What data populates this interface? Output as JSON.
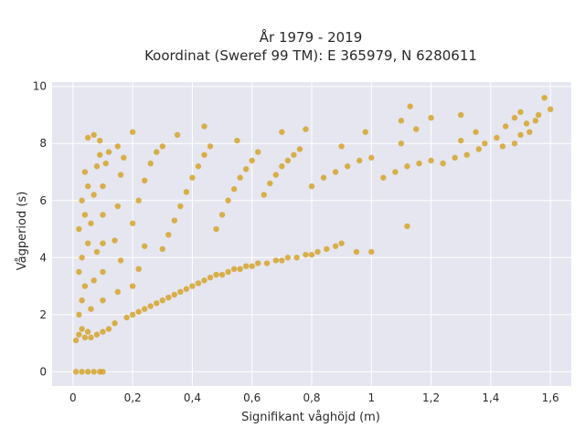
{
  "chart_data": {
    "type": "scatter",
    "title_lines": [
      "År 1979 - 2019",
      "Koordinat (Sweref 99 TM): E 365979, N 6280611"
    ],
    "xlabel": "Signifikant våghöjd (m)",
    "ylabel": "Vågperiod (s)",
    "xlim": [
      -0.07,
      1.67
    ],
    "ylim": [
      -0.5,
      10.15
    ],
    "x_ticks": [
      0,
      0.2,
      0.4,
      0.6,
      0.8,
      1,
      1.2,
      1.4,
      1.6
    ],
    "x_tick_labels": [
      "0",
      "0,2",
      "0,4",
      "0,6",
      "0,8",
      "1",
      "1,2",
      "1,4",
      "1,6"
    ],
    "y_ticks": [
      0,
      2,
      4,
      6,
      8,
      10
    ],
    "y_tick_labels": [
      "0",
      "2",
      "4",
      "6",
      "8",
      "10"
    ],
    "grid": true,
    "colors": {
      "marker": "#d4a020",
      "plot_background": "#e5e6ef",
      "grid": "#ffffff"
    },
    "series": [
      {
        "points": [
          [
            0.01,
            0
          ],
          [
            0.03,
            0
          ],
          [
            0.05,
            0
          ],
          [
            0.07,
            0
          ],
          [
            0.09,
            0
          ],
          [
            0.1,
            0
          ],
          [
            0.01,
            1.1
          ],
          [
            0.02,
            1.3
          ],
          [
            0.03,
            1.5
          ],
          [
            0.04,
            1.2
          ],
          [
            0.05,
            1.4
          ],
          [
            0.06,
            1.2
          ],
          [
            0.08,
            1.3
          ],
          [
            0.1,
            1.4
          ],
          [
            0.12,
            1.5
          ],
          [
            0.02,
            2.0
          ],
          [
            0.03,
            2.5
          ],
          [
            0.04,
            3.0
          ],
          [
            0.02,
            3.5
          ],
          [
            0.03,
            4.0
          ],
          [
            0.05,
            4.5
          ],
          [
            0.02,
            5.0
          ],
          [
            0.04,
            5.5
          ],
          [
            0.03,
            6.0
          ],
          [
            0.05,
            6.5
          ],
          [
            0.04,
            7.0
          ],
          [
            0.06,
            2.2
          ],
          [
            0.07,
            3.2
          ],
          [
            0.08,
            4.2
          ],
          [
            0.06,
            5.2
          ],
          [
            0.07,
            6.2
          ],
          [
            0.08,
            7.2
          ],
          [
            0.09,
            7.6
          ],
          [
            0.05,
            8.2
          ],
          [
            0.07,
            8.3
          ],
          [
            0.09,
            8.1
          ],
          [
            0.1,
            2.5
          ],
          [
            0.1,
            3.5
          ],
          [
            0.1,
            4.5
          ],
          [
            0.1,
            5.5
          ],
          [
            0.1,
            6.5
          ],
          [
            0.11,
            7.3
          ],
          [
            0.12,
            7.7
          ],
          [
            0.14,
            1.7
          ],
          [
            0.15,
            2.8
          ],
          [
            0.16,
            3.9
          ],
          [
            0.14,
            4.6
          ],
          [
            0.15,
            5.8
          ],
          [
            0.16,
            6.9
          ],
          [
            0.17,
            7.5
          ],
          [
            0.15,
            7.9
          ],
          [
            0.2,
            8.4
          ],
          [
            0.18,
            1.9
          ],
          [
            0.2,
            2.0
          ],
          [
            0.22,
            2.1
          ],
          [
            0.24,
            2.2
          ],
          [
            0.26,
            2.3
          ],
          [
            0.28,
            2.4
          ],
          [
            0.3,
            2.5
          ],
          [
            0.2,
            3.0
          ],
          [
            0.22,
            3.6
          ],
          [
            0.24,
            4.4
          ],
          [
            0.2,
            5.2
          ],
          [
            0.22,
            6.0
          ],
          [
            0.24,
            6.7
          ],
          [
            0.26,
            7.3
          ],
          [
            0.28,
            7.7
          ],
          [
            0.3,
            7.9
          ],
          [
            0.32,
            2.6
          ],
          [
            0.34,
            2.7
          ],
          [
            0.36,
            2.8
          ],
          [
            0.38,
            2.9
          ],
          [
            0.4,
            3.0
          ],
          [
            0.42,
            3.1
          ],
          [
            0.44,
            3.2
          ],
          [
            0.3,
            4.3
          ],
          [
            0.32,
            4.8
          ],
          [
            0.34,
            5.3
          ],
          [
            0.36,
            5.8
          ],
          [
            0.38,
            6.3
          ],
          [
            0.4,
            6.8
          ],
          [
            0.42,
            7.2
          ],
          [
            0.44,
            7.6
          ],
          [
            0.46,
            7.9
          ],
          [
            0.35,
            8.3
          ],
          [
            0.44,
            8.6
          ],
          [
            0.46,
            3.3
          ],
          [
            0.48,
            3.4
          ],
          [
            0.5,
            3.4
          ],
          [
            0.52,
            3.5
          ],
          [
            0.54,
            3.6
          ],
          [
            0.56,
            3.6
          ],
          [
            0.58,
            3.7
          ],
          [
            0.6,
            3.7
          ],
          [
            0.48,
            5.0
          ],
          [
            0.5,
            5.5
          ],
          [
            0.52,
            6.0
          ],
          [
            0.54,
            6.4
          ],
          [
            0.56,
            6.8
          ],
          [
            0.58,
            7.1
          ],
          [
            0.6,
            7.4
          ],
          [
            0.62,
            7.7
          ],
          [
            0.55,
            8.1
          ],
          [
            0.62,
            3.8
          ],
          [
            0.65,
            3.8
          ],
          [
            0.68,
            3.9
          ],
          [
            0.7,
            3.9
          ],
          [
            0.72,
            4.0
          ],
          [
            0.75,
            4.0
          ],
          [
            0.78,
            4.1
          ],
          [
            0.8,
            4.1
          ],
          [
            0.64,
            6.2
          ],
          [
            0.66,
            6.6
          ],
          [
            0.68,
            6.9
          ],
          [
            0.7,
            7.2
          ],
          [
            0.72,
            7.4
          ],
          [
            0.74,
            7.6
          ],
          [
            0.76,
            7.8
          ],
          [
            0.7,
            8.4
          ],
          [
            0.78,
            8.5
          ],
          [
            0.82,
            4.2
          ],
          [
            0.85,
            4.3
          ],
          [
            0.88,
            4.4
          ],
          [
            0.9,
            4.5
          ],
          [
            0.95,
            4.2
          ],
          [
            1.0,
            4.2
          ],
          [
            0.8,
            6.5
          ],
          [
            0.84,
            6.8
          ],
          [
            0.88,
            7.0
          ],
          [
            0.92,
            7.2
          ],
          [
            0.96,
            7.4
          ],
          [
            1.0,
            7.5
          ],
          [
            0.9,
            7.9
          ],
          [
            0.98,
            8.4
          ],
          [
            1.04,
            6.8
          ],
          [
            1.08,
            7.0
          ],
          [
            1.12,
            7.2
          ],
          [
            1.16,
            7.3
          ],
          [
            1.2,
            7.4
          ],
          [
            1.1,
            8.0
          ],
          [
            1.15,
            8.5
          ],
          [
            1.1,
            8.8
          ],
          [
            1.13,
            9.3
          ],
          [
            1.2,
            8.9
          ],
          [
            1.12,
            5.1
          ],
          [
            1.24,
            7.3
          ],
          [
            1.28,
            7.5
          ],
          [
            1.32,
            7.6
          ],
          [
            1.36,
            7.8
          ],
          [
            1.3,
            8.1
          ],
          [
            1.35,
            8.4
          ],
          [
            1.3,
            9.0
          ],
          [
            1.38,
            8.0
          ],
          [
            1.42,
            8.2
          ],
          [
            1.45,
            8.6
          ],
          [
            1.48,
            8.9
          ],
          [
            1.52,
            8.7
          ],
          [
            1.44,
            7.9
          ],
          [
            1.5,
            8.3
          ],
          [
            1.5,
            9.1
          ],
          [
            1.55,
            8.8
          ],
          [
            1.58,
            9.6
          ],
          [
            1.6,
            9.2
          ],
          [
            1.56,
            9.0
          ],
          [
            1.48,
            8.0
          ],
          [
            1.53,
            8.4
          ]
        ]
      }
    ]
  }
}
